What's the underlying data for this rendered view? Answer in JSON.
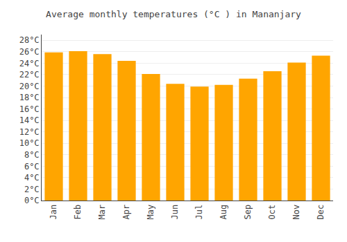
{
  "chart_data": {
    "type": "bar",
    "title": "Average monthly temperatures (°C ) in Mananjary",
    "categories": [
      "Jan",
      "Feb",
      "Mar",
      "Apr",
      "May",
      "Jun",
      "Jul",
      "Aug",
      "Sep",
      "Oct",
      "Nov",
      "Dec"
    ],
    "values": [
      25.9,
      26.1,
      25.6,
      24.4,
      22.1,
      20.4,
      19.9,
      20.2,
      21.3,
      22.6,
      24.1,
      25.3
    ],
    "color": "#FFA500",
    "ylim": [
      0,
      29
    ],
    "yticks": [
      {
        "value": 0,
        "label": "0°C"
      },
      {
        "value": 2,
        "label": "2°C"
      },
      {
        "value": 4,
        "label": "4°C"
      },
      {
        "value": 6,
        "label": "6°C"
      },
      {
        "value": 8,
        "label": "8°C"
      },
      {
        "value": 10,
        "label": "10°C"
      },
      {
        "value": 12,
        "label": "12°C"
      },
      {
        "value": 14,
        "label": "14°C"
      },
      {
        "value": 16,
        "label": "16°C"
      },
      {
        "value": 18,
        "label": "18°C"
      },
      {
        "value": 20,
        "label": "20°C"
      },
      {
        "value": 22,
        "label": "22°C"
      },
      {
        "value": 24,
        "label": "24°C"
      },
      {
        "value": 26,
        "label": "26°C"
      },
      {
        "value": 28,
        "label": "28°C"
      }
    ],
    "grid": true
  }
}
